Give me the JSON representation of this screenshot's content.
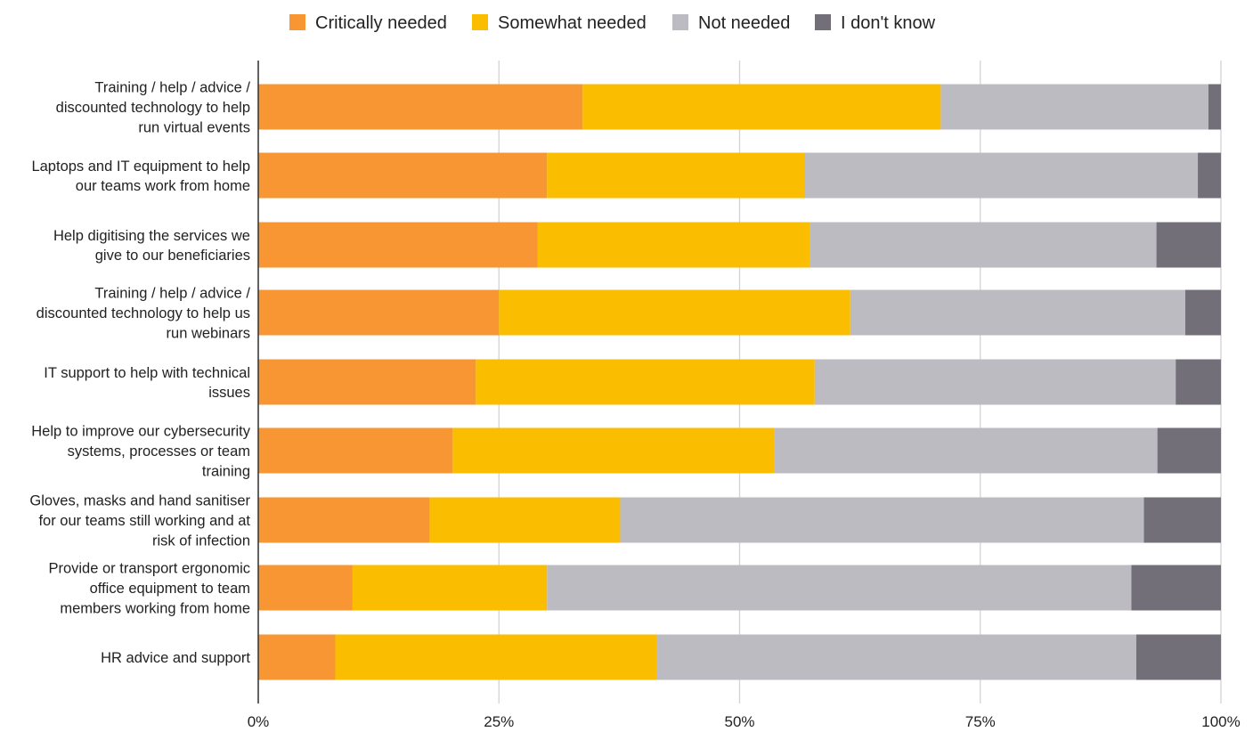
{
  "chart_data": {
    "type": "bar",
    "orientation": "horizontal",
    "stacked": "percent",
    "title": "",
    "xlabel": "",
    "ylabel": "",
    "xlim": [
      0,
      100
    ],
    "xticks": [
      "0%",
      "25%",
      "50%",
      "75%",
      "100%"
    ],
    "grid": "vertical",
    "legend_position": "top",
    "categories": [
      [
        "Training / help / advice /",
        "discounted technology to help",
        "run virtual events"
      ],
      [
        "Laptops and IT equipment to help",
        "our teams work from home"
      ],
      [
        "Help digitising the services we",
        "give to our beneficiaries"
      ],
      [
        "Training / help / advice /",
        "discounted technology to help us",
        "run webinars"
      ],
      [
        "IT support to help with technical",
        "issues"
      ],
      [
        "Help to improve our cybersecurity",
        "systems, processes or team",
        "training"
      ],
      [
        "Gloves, masks and hand sanitiser",
        "for our teams still working and at",
        "risk of infection"
      ],
      [
        "Provide or transport ergonomic",
        "office equipment to team",
        "members working from home"
      ],
      [
        "HR advice and support"
      ]
    ],
    "series": [
      {
        "name": "Critically needed",
        "color": "#F79633",
        "values": [
          33.7,
          30.0,
          29.0,
          25.0,
          22.6,
          20.2,
          17.8,
          9.8,
          8.0
        ]
      },
      {
        "name": "Somewhat needed",
        "color": "#FABD00",
        "values": [
          37.2,
          26.8,
          28.3,
          36.5,
          35.2,
          33.4,
          19.8,
          20.2,
          33.4
        ]
      },
      {
        "name": "Not needed",
        "color": "#BDBBC2",
        "values": [
          27.8,
          40.8,
          36.0,
          34.8,
          37.5,
          39.8,
          54.4,
          60.7,
          49.8
        ]
      },
      {
        "name": "I don't know",
        "color": "#726F79",
        "values": [
          1.3,
          2.4,
          6.7,
          3.7,
          4.7,
          6.6,
          8.0,
          9.3,
          8.8
        ]
      }
    ]
  }
}
